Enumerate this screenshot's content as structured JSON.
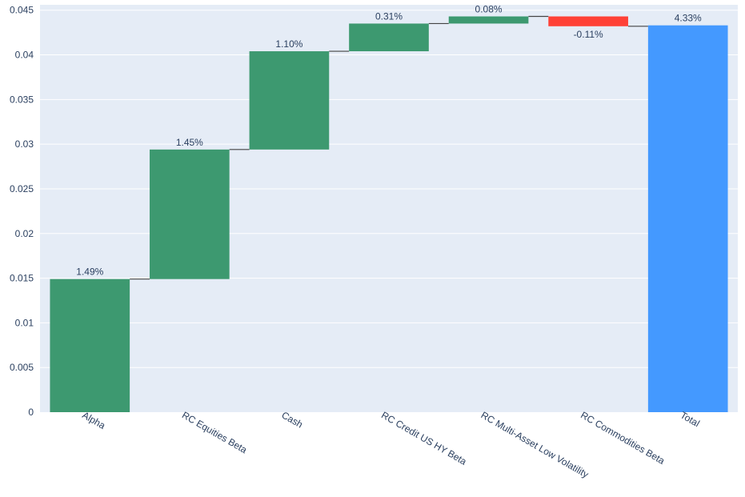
{
  "chart_data": {
    "type": "waterfall",
    "categories": [
      "Alpha",
      "RC Equities Beta",
      "Cash",
      "RC Credit US HY Beta",
      "RC Multi-Asset Low Volatility",
      "RC Commodities Beta",
      "Total"
    ],
    "values": [
      0.0149,
      0.0145,
      0.011,
      0.0031,
      0.0008,
      -0.0011,
      0.0433
    ],
    "measures": [
      "relative",
      "relative",
      "relative",
      "relative",
      "relative",
      "relative",
      "total"
    ],
    "data_labels": [
      "1.49%",
      "1.45%",
      "1.10%",
      "0.31%",
      "0.08%",
      "-0.11%",
      "4.33%"
    ],
    "yticks": [
      0,
      0.005,
      0.01,
      0.015,
      0.02,
      0.025,
      0.03,
      0.035,
      0.04,
      0.045
    ],
    "ytick_labels": [
      "0",
      "0.005",
      "0.01",
      "0.015",
      "0.02",
      "0.025",
      "0.03",
      "0.035",
      "0.04",
      "0.045"
    ],
    "ylim": [
      0,
      0.0456
    ],
    "grid": true,
    "colors": {
      "increasing": "#3d9970",
      "decreasing": "#ff4136",
      "total": "#4499ff",
      "plot_bg": "#e5ecf6",
      "gridline": "#ffffff",
      "connector": "#444444",
      "text": "#2a3f5f"
    }
  }
}
